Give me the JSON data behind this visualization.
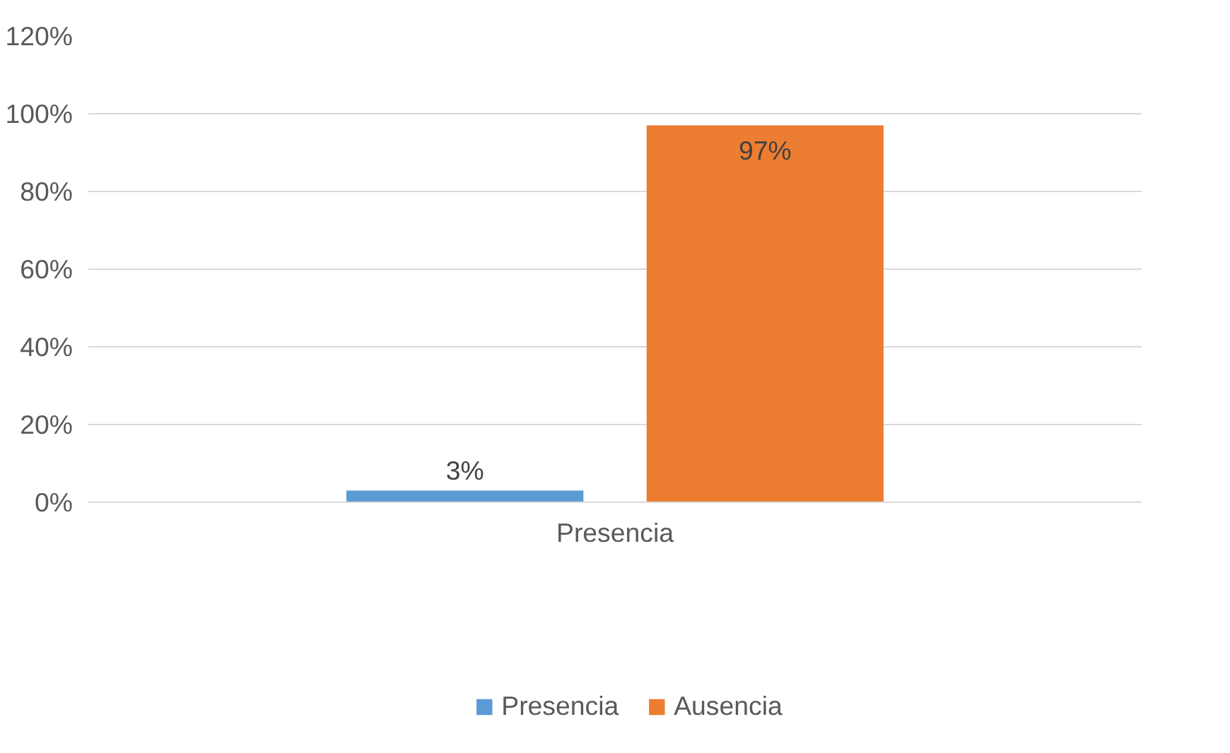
{
  "chart_data": {
    "type": "bar",
    "categories": [
      "Presencia"
    ],
    "series": [
      {
        "name": "Presencia",
        "color": "#5b9bd5",
        "values": [
          3
        ],
        "value_labels": [
          "3%"
        ]
      },
      {
        "name": "Ausencia",
        "color": "#ed7d31",
        "values": [
          97
        ],
        "value_labels": [
          "97%"
        ]
      }
    ],
    "ylim": [
      0,
      120
    ],
    "yticks": [
      {
        "value": 0,
        "label": "0%"
      },
      {
        "value": 20,
        "label": "20%"
      },
      {
        "value": 40,
        "label": "40%"
      },
      {
        "value": 60,
        "label": "60%"
      },
      {
        "value": 80,
        "label": "80%"
      },
      {
        "value": 100,
        "label": "100%"
      },
      {
        "value": 120,
        "label": "120%"
      }
    ],
    "grid": "y",
    "legend": "bottom"
  }
}
